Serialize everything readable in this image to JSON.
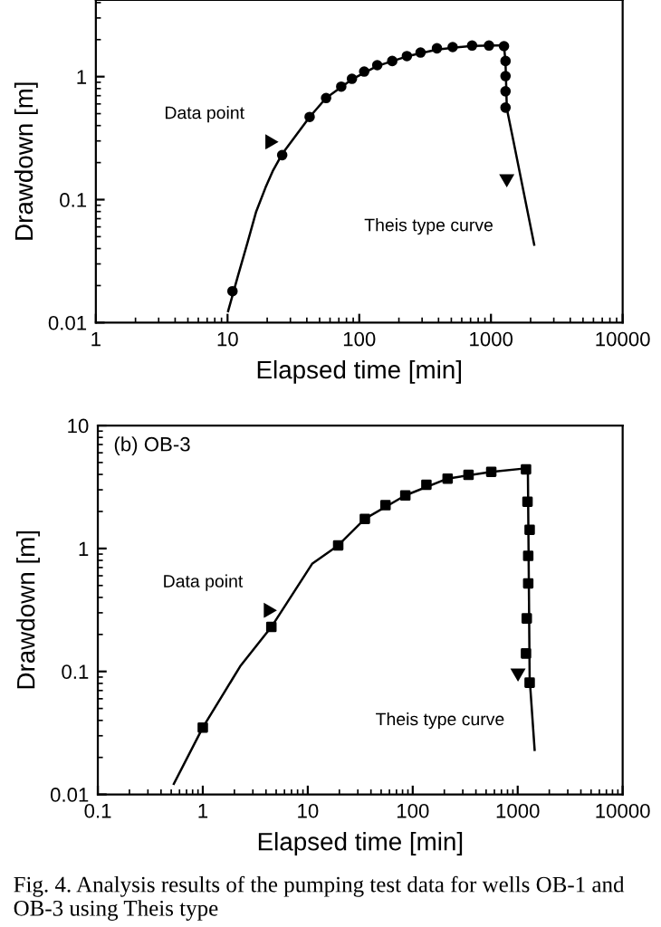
{
  "chart_data": [
    {
      "type": "scatter",
      "xlabel": "Elapsed time [min]",
      "ylabel": "Drawdown [m]",
      "log": "xy",
      "xlim": [
        1,
        10000
      ],
      "ylim": [
        0.01,
        4.2
      ],
      "xticks": [
        1,
        10,
        100,
        1000,
        10000
      ],
      "yticks": [
        0.01,
        0.1,
        1
      ],
      "grid": false,
      "legend": false,
      "annotations": [
        "Data point",
        "Theis type curve"
      ],
      "series": [
        {
          "marker": "circle",
          "color": "#000000",
          "x": [
            10.9,
            26,
            42,
            56,
            73,
            88,
            109,
            137,
            178,
            230,
            292,
            389,
            512,
            719,
            966,
            1256,
            1290,
            1290,
            1290,
            1290
          ],
          "values": [
            0.018,
            0.23,
            0.47,
            0.67,
            0.83,
            0.96,
            1.1,
            1.24,
            1.34,
            1.47,
            1.57,
            1.7,
            1.74,
            1.79,
            1.79,
            1.77,
            1.34,
            1.01,
            0.76,
            0.56
          ]
        },
        {
          "type": "line",
          "marker": "none",
          "line_style": "solid",
          "color": "#000000",
          "x": [
            10.1,
            12,
            14.2,
            16.5,
            19.4,
            22,
            26,
            42,
            56,
            88,
            137,
            230,
            389,
            719,
            1256,
            1290,
            1320,
            1472,
            2130
          ],
          "values": [
            0.0124,
            0.024,
            0.045,
            0.08,
            0.125,
            0.17,
            0.235,
            0.47,
            0.67,
            0.95,
            1.22,
            1.46,
            1.66,
            1.78,
            1.8,
            1.3,
            0.55,
            0.31,
            0.043
          ]
        }
      ]
    },
    {
      "type": "scatter",
      "xlabel": "Elapsed time [min]",
      "ylabel": "Drawdown [m]",
      "log": "xy",
      "xlim": [
        0.1,
        10000
      ],
      "ylim": [
        0.01,
        10
      ],
      "xticks": [
        0.1,
        1,
        10,
        100,
        1000,
        10000
      ],
      "yticks": [
        0.01,
        0.1,
        1,
        10
      ],
      "grid": false,
      "legend": false,
      "annotations": [
        "(b) OB-3",
        "Data point",
        "Theis type curve",
        "Fig. 4. Analysis results of the pumping test data for wells OB-1 and OB-3 using Theis type"
      ],
      "series": [
        {
          "marker": "square",
          "color": "#000000",
          "x": [
            1,
            4.5,
            19.5,
            35,
            55,
            85,
            135,
            215,
            340,
            560,
            1200,
            1240,
            1300,
            1260,
            1260,
            1220,
            1200,
            1300
          ],
          "values": [
            0.035,
            0.23,
            1.06,
            1.74,
            2.25,
            2.7,
            3.3,
            3.7,
            3.97,
            4.2,
            4.4,
            2.4,
            1.42,
            0.87,
            0.52,
            0.27,
            0.14,
            0.081
          ]
        },
        {
          "type": "line",
          "marker": "none",
          "line_style": "solid",
          "color": "#000000",
          "x": [
            0.53,
            1,
            2.27,
            4.5,
            11,
            19.5,
            35,
            85,
            215,
            560,
            1250,
            1300,
            1450
          ],
          "values": [
            0.0122,
            0.035,
            0.11,
            0.23,
            0.75,
            1.06,
            1.74,
            2.7,
            3.7,
            4.2,
            4.5,
            0.088,
            0.023
          ]
        }
      ]
    }
  ]
}
